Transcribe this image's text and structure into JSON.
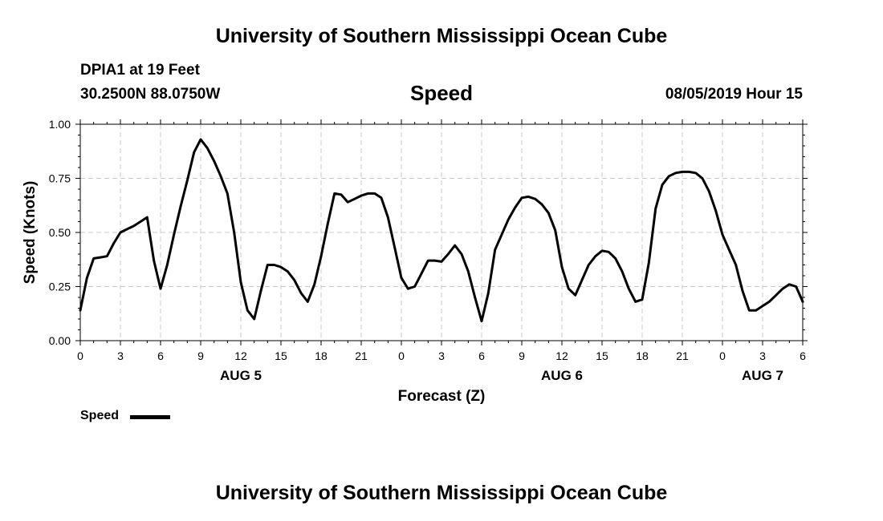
{
  "page": {
    "title_top": "University of Southern Mississippi Ocean Cube",
    "title_bottom": "University of Southern Mississippi Ocean Cube",
    "station": "DPIA1 at 19 Feet",
    "coords": "30.2500N 88.0750W",
    "chart_title": "Speed",
    "timestamp": "08/05/2019 Hour 15"
  },
  "chart_data": {
    "type": "line",
    "title": "Speed",
    "xlabel": "Forecast (Z)",
    "ylabel": "Speed (Knots)",
    "xlim": [
      0,
      54
    ],
    "ylim": [
      0,
      1
    ],
    "yticks": [
      0,
      0.25,
      0.5,
      0.75,
      1.0
    ],
    "ytick_labels": [
      "0.00",
      "0.25",
      "0.50",
      "0.75",
      "1.00"
    ],
    "xticks": [
      0,
      3,
      6,
      9,
      12,
      15,
      18,
      21,
      24,
      27,
      30,
      33,
      36,
      39,
      42,
      45,
      48,
      51,
      54
    ],
    "xtick_labels": [
      "0",
      "3",
      "6",
      "9",
      "12",
      "15",
      "18",
      "21",
      "0",
      "3",
      "6",
      "9",
      "12",
      "15",
      "18",
      "21",
      "0",
      "3",
      "6"
    ],
    "date_labels": [
      {
        "x": 12,
        "label": "AUG 5"
      },
      {
        "x": 36,
        "label": "AUG 6"
      },
      {
        "x": 51,
        "label": "AUG 7"
      }
    ],
    "grid": true,
    "legend": "bottom-left",
    "series": [
      {
        "name": "Speed",
        "color": "#000000",
        "x": [
          0,
          0.5,
          1,
          1.5,
          2,
          2.5,
          3,
          3.5,
          4,
          4.5,
          5,
          5.5,
          6,
          6.5,
          7,
          7.5,
          8,
          8.5,
          9,
          9.5,
          10,
          10.5,
          11,
          11.5,
          12,
          12.5,
          13,
          13.5,
          14,
          14.5,
          15,
          15.5,
          16,
          16.5,
          17,
          17.5,
          18,
          18.5,
          19,
          19.5,
          20,
          20.5,
          21,
          21.5,
          22,
          22.5,
          23,
          23.5,
          24,
          24.5,
          25,
          25.5,
          26,
          26.5,
          27,
          27.5,
          28,
          28.5,
          29,
          29.5,
          30,
          30.5,
          31,
          31.5,
          32,
          32.5,
          33,
          33.5,
          34,
          34.5,
          35,
          35.5,
          36,
          36.5,
          37,
          37.5,
          38,
          38.5,
          39,
          39.5,
          40,
          40.5,
          41,
          41.5,
          42,
          42.5,
          43,
          43.5,
          44,
          44.5,
          45,
          45.5,
          46,
          46.5,
          47,
          47.5,
          48,
          48.5,
          49,
          49.5,
          50,
          50.5,
          51,
          51.5,
          52,
          52.5,
          53,
          53.5,
          54
        ],
        "y": [
          0.14,
          0.29,
          0.38,
          0.385,
          0.39,
          0.45,
          0.5,
          0.515,
          0.53,
          0.55,
          0.57,
          0.37,
          0.24,
          0.35,
          0.49,
          0.62,
          0.74,
          0.87,
          0.93,
          0.89,
          0.83,
          0.76,
          0.68,
          0.5,
          0.27,
          0.14,
          0.1,
          0.23,
          0.35,
          0.35,
          0.34,
          0.32,
          0.28,
          0.22,
          0.18,
          0.26,
          0.39,
          0.54,
          0.68,
          0.675,
          0.64,
          0.655,
          0.67,
          0.68,
          0.68,
          0.66,
          0.57,
          0.43,
          0.29,
          0.24,
          0.25,
          0.31,
          0.37,
          0.37,
          0.365,
          0.4,
          0.44,
          0.4,
          0.32,
          0.2,
          0.09,
          0.22,
          0.42,
          0.49,
          0.56,
          0.615,
          0.66,
          0.665,
          0.655,
          0.63,
          0.59,
          0.51,
          0.34,
          0.24,
          0.21,
          0.28,
          0.35,
          0.39,
          0.415,
          0.41,
          0.38,
          0.32,
          0.24,
          0.18,
          0.19,
          0.36,
          0.61,
          0.72,
          0.76,
          0.775,
          0.78,
          0.78,
          0.775,
          0.75,
          0.69,
          0.6,
          0.49,
          0.42,
          0.35,
          0.23,
          0.14,
          0.14,
          0.16,
          0.18,
          0.21,
          0.24,
          0.26,
          0.25,
          0.18
        ]
      }
    ]
  }
}
